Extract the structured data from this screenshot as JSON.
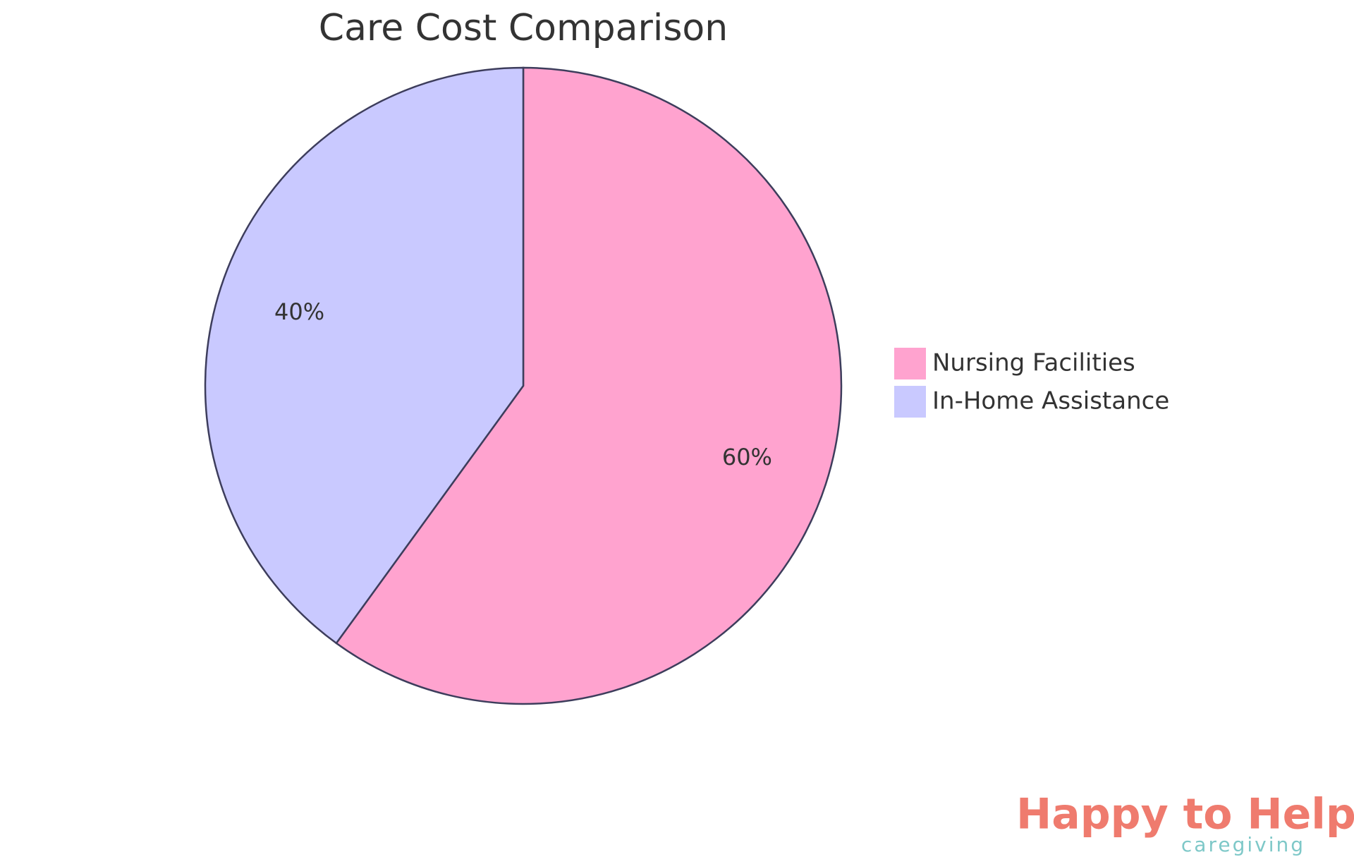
{
  "chart_data": {
    "type": "pie",
    "title": "Care Cost Comparison",
    "categories": [
      "Nursing Facilities",
      "In-Home Assistance"
    ],
    "values": [
      60,
      40
    ],
    "value_labels": [
      "60%",
      "40%"
    ],
    "colors": [
      "#ffa3cf",
      "#c9c9ff"
    ],
    "legend": "right"
  },
  "logo": {
    "name": "Happy to Help",
    "tagline": "caregiving"
  }
}
